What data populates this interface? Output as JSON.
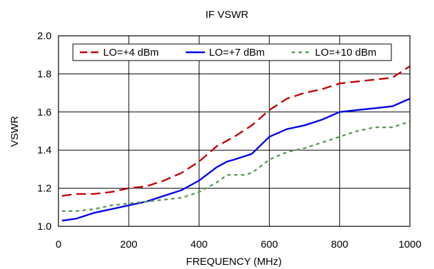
{
  "chart_data": {
    "type": "line",
    "title": "IF VSWR",
    "xlabel": "FREQUENCY (MHz)",
    "ylabel": "VSWR",
    "xlim": [
      0,
      1000
    ],
    "ylim": [
      1.0,
      2.0
    ],
    "xticks": [
      "0",
      "200",
      "400",
      "600",
      "800",
      "1000"
    ],
    "yticks": [
      "1.0",
      "1.2",
      "1.4",
      "1.6",
      "1.8",
      "2.0"
    ],
    "grid": true,
    "legend": "top",
    "series": [
      {
        "name": "LO=+4 dBm",
        "color": "#c00000",
        "style": "dashed",
        "x": [
          10,
          50,
          100,
          150,
          200,
          250,
          300,
          350,
          400,
          450,
          500,
          550,
          600,
          650,
          700,
          750,
          800,
          850,
          900,
          950,
          1000
        ],
        "y": [
          1.16,
          1.17,
          1.17,
          1.18,
          1.2,
          1.21,
          1.24,
          1.28,
          1.34,
          1.42,
          1.47,
          1.53,
          1.61,
          1.67,
          1.7,
          1.72,
          1.75,
          1.76,
          1.77,
          1.78,
          1.84
        ]
      },
      {
        "name": "LO=+7 dBm",
        "color": "#0000ee",
        "style": "solid",
        "x": [
          10,
          50,
          100,
          150,
          200,
          250,
          300,
          350,
          400,
          450,
          480,
          500,
          550,
          600,
          650,
          700,
          750,
          800,
          850,
          900,
          950,
          1000
        ],
        "y": [
          1.03,
          1.04,
          1.07,
          1.09,
          1.11,
          1.13,
          1.16,
          1.19,
          1.24,
          1.31,
          1.34,
          1.35,
          1.38,
          1.47,
          1.51,
          1.53,
          1.56,
          1.6,
          1.61,
          1.62,
          1.63,
          1.67
        ]
      },
      {
        "name": "LO=+10 dBm",
        "color": "#5a9a5a",
        "style": "dotted",
        "x": [
          10,
          50,
          100,
          150,
          200,
          250,
          300,
          350,
          400,
          450,
          480,
          500,
          530,
          550,
          600,
          650,
          700,
          750,
          800,
          850,
          900,
          950,
          1000
        ],
        "y": [
          1.08,
          1.08,
          1.09,
          1.11,
          1.12,
          1.13,
          1.14,
          1.15,
          1.18,
          1.23,
          1.27,
          1.27,
          1.27,
          1.28,
          1.35,
          1.39,
          1.41,
          1.44,
          1.47,
          1.5,
          1.52,
          1.52,
          1.55
        ]
      }
    ]
  }
}
